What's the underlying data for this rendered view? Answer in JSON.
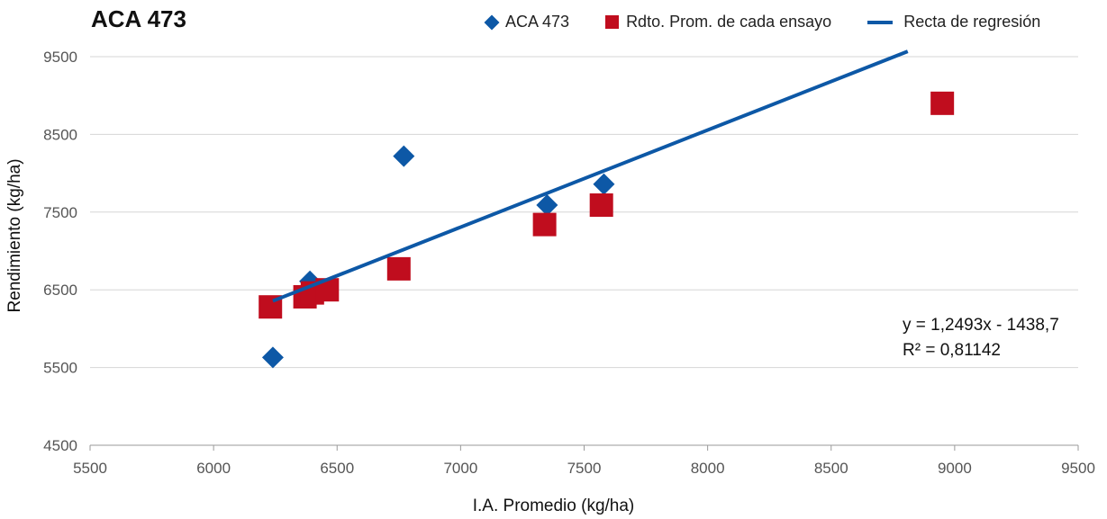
{
  "chart_data": {
    "type": "scatter",
    "title": "ACA 473",
    "xlabel": "I.A. Promedio (kg/ha)",
    "ylabel": "Rendimiento (kg/ha)",
    "xlim": [
      5500,
      9500
    ],
    "ylim": [
      4500,
      9500
    ],
    "x_ticks": [
      5500,
      6000,
      6500,
      7000,
      7500,
      8000,
      8500,
      9000,
      9500
    ],
    "y_ticks": [
      4500,
      5500,
      6500,
      7500,
      8500,
      9500
    ],
    "grid": "horizontal",
    "legend_position": "top",
    "series": [
      {
        "name": "ACA 473",
        "marker": "diamond",
        "color": "#0d58a6",
        "points": [
          {
            "x": 6240,
            "y": 5630
          },
          {
            "x": 6390,
            "y": 6610
          },
          {
            "x": 6770,
            "y": 8220
          },
          {
            "x": 7350,
            "y": 7590
          },
          {
            "x": 7580,
            "y": 7860
          }
        ]
      },
      {
        "name": "Rdto. Prom. de cada ensayo",
        "marker": "square",
        "color": "#c00d1e",
        "points": [
          {
            "x": 6230,
            "y": 6280
          },
          {
            "x": 6370,
            "y": 6410
          },
          {
            "x": 6400,
            "y": 6460
          },
          {
            "x": 6460,
            "y": 6500
          },
          {
            "x": 6750,
            "y": 6770
          },
          {
            "x": 7340,
            "y": 7340
          },
          {
            "x": 7570,
            "y": 7590
          },
          {
            "x": 8950,
            "y": 8900
          }
        ]
      }
    ],
    "trendline": {
      "name": "Recta de regresión",
      "color": "#0d58a6",
      "slope": 1.2493,
      "intercept": -1438.7,
      "x_range": [
        6240,
        8810
      ],
      "equation": "y = 1,2493x - 1438,7",
      "r2": "R² = 0,81142"
    }
  }
}
